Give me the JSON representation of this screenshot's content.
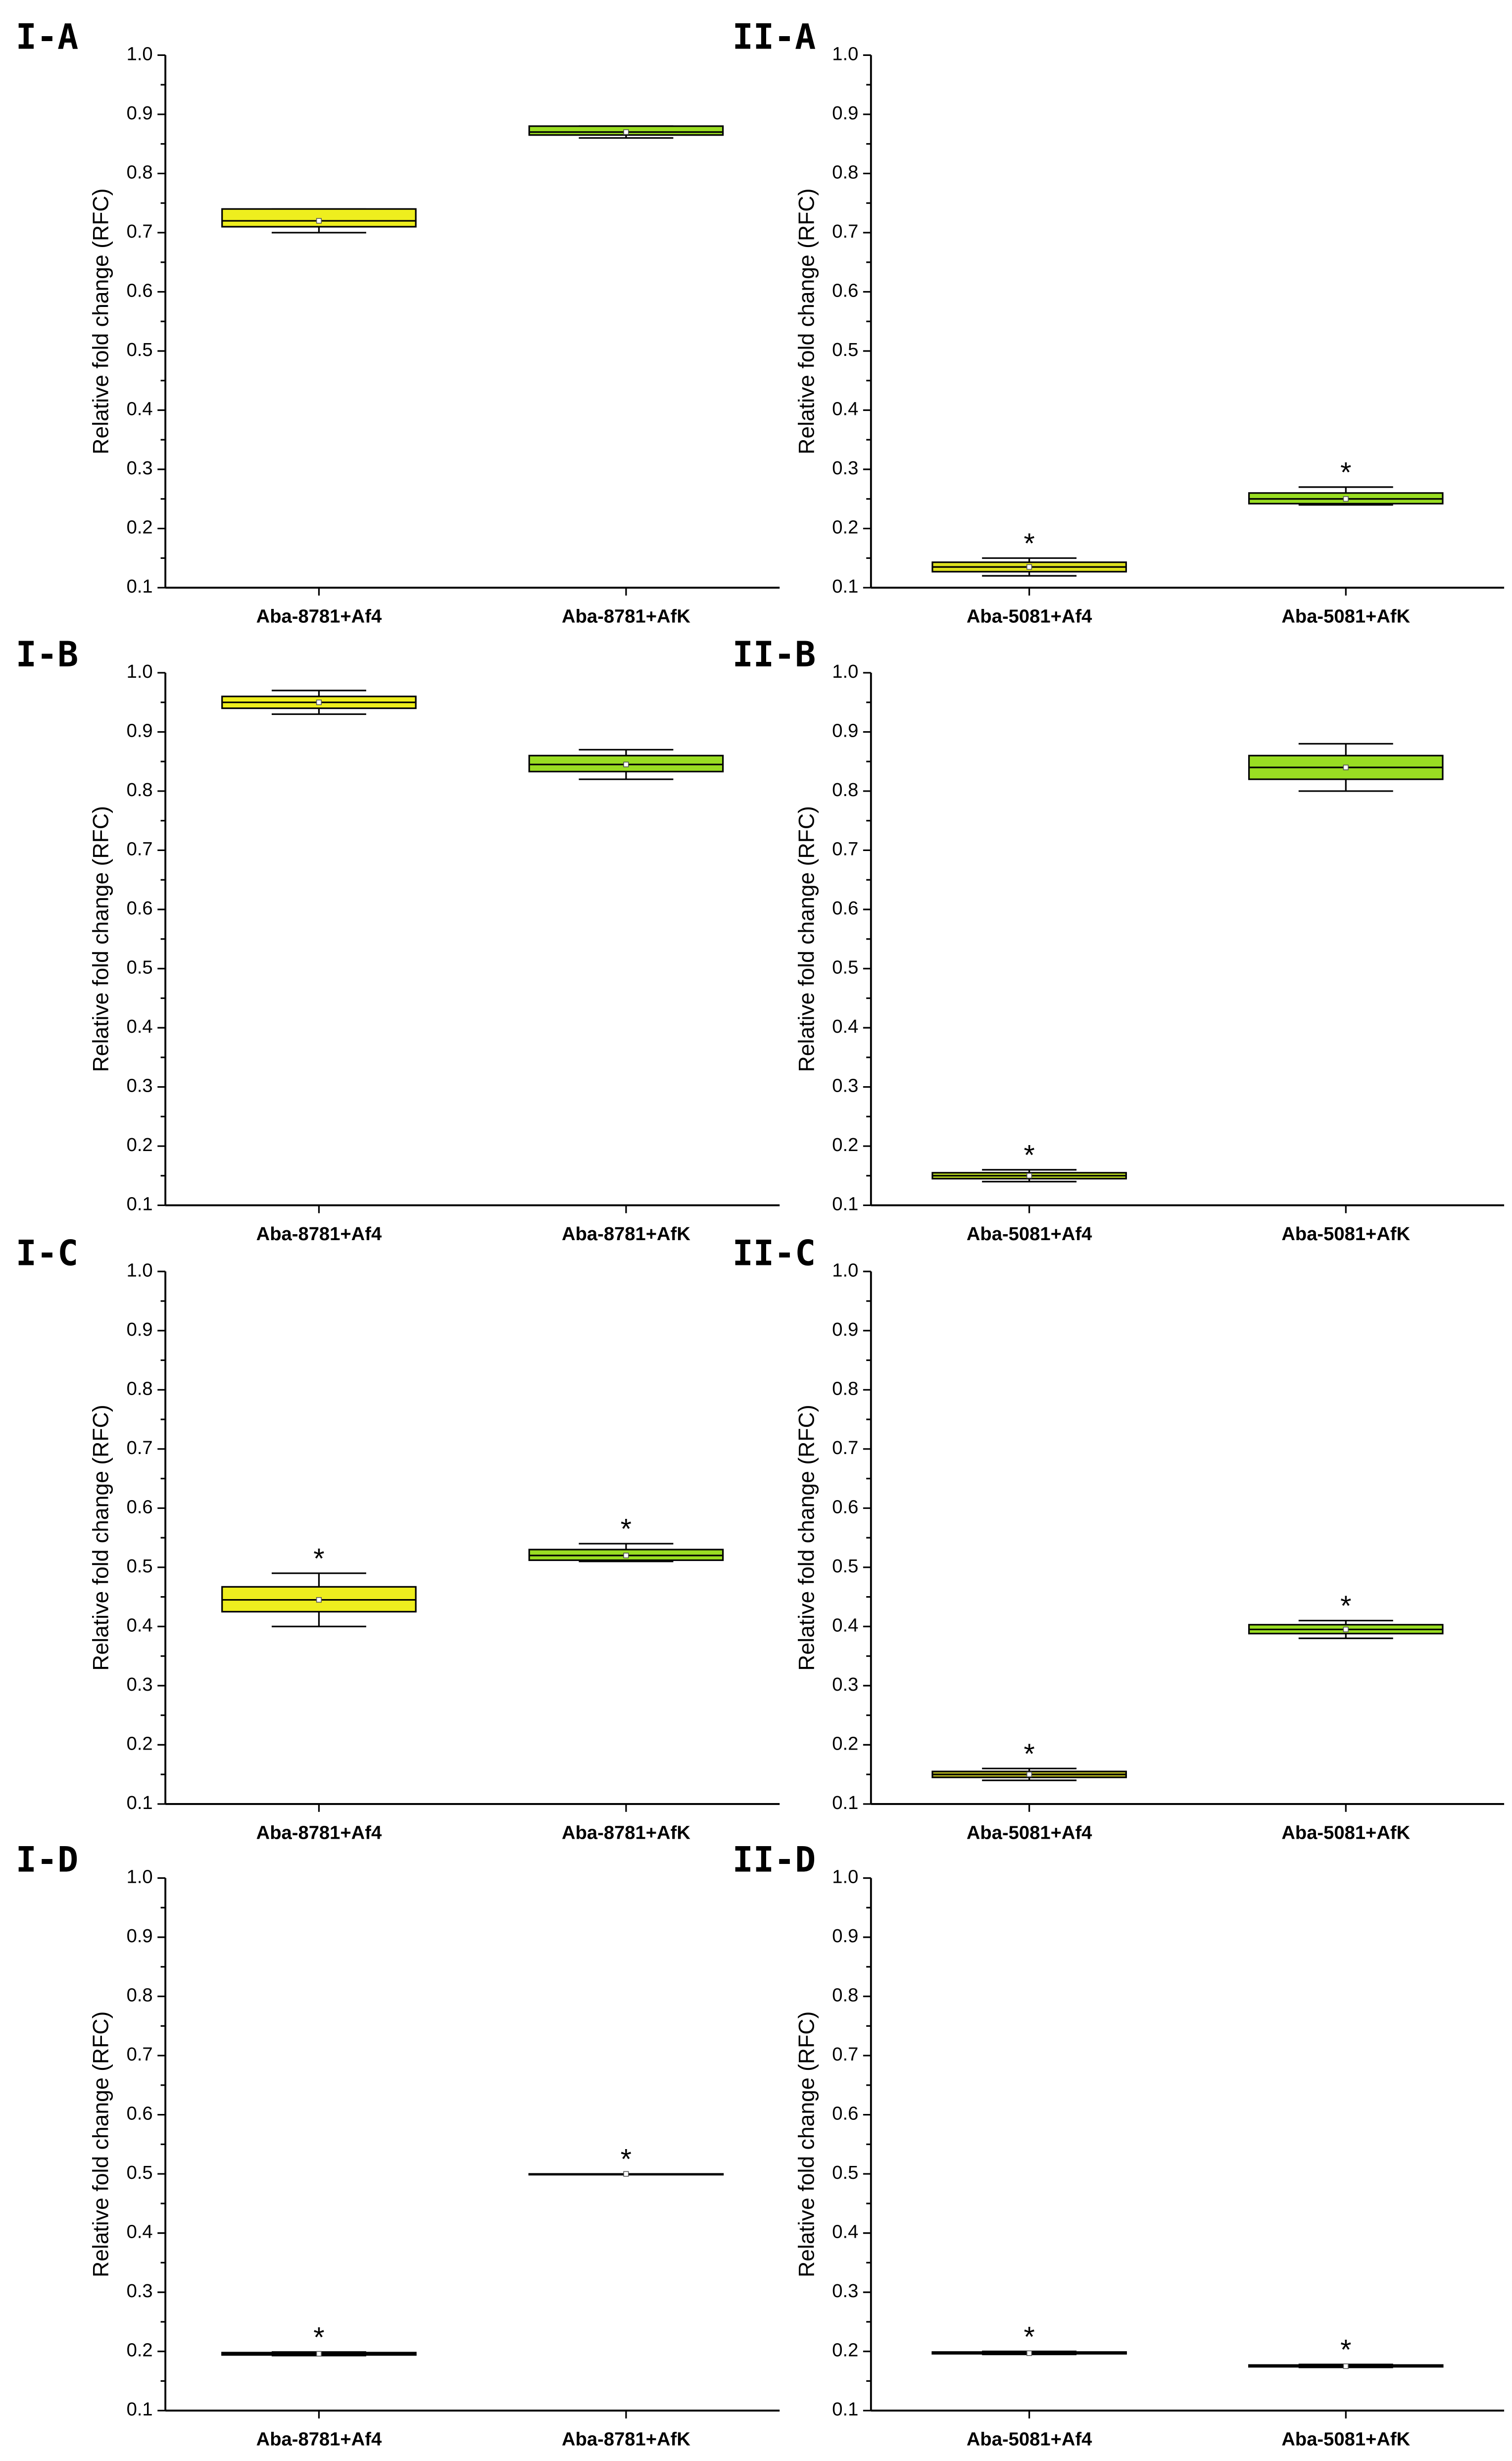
{
  "chart_data": [
    {
      "type": "box",
      "title": "I-A",
      "ylabel": "Relative fold change (RFC)",
      "categories": [
        "Aba-8781+Af4",
        "Aba-8781+AfK"
      ],
      "boxes": [
        {
          "min": 0.7,
          "q1": 0.71,
          "median": 0.72,
          "q3": 0.74,
          "max": 0.74,
          "mean": 0.72,
          "color": "#eeee1e"
        },
        {
          "min": 0.86,
          "q1": 0.865,
          "median": 0.87,
          "q3": 0.88,
          "max": 0.88,
          "mean": 0.87,
          "color": "#99dd22"
        }
      ],
      "ylim": [
        0.1,
        1.0
      ],
      "yticks": [
        0.1,
        0.2,
        0.3,
        0.4,
        0.5,
        0.6,
        0.7,
        0.8,
        0.9,
        {
          "value": 1.0,
          "label": "1.0"
        }
      ]
    },
    {
      "type": "box",
      "title": "II-A",
      "ylabel": "Relative fold change (RFC)",
      "categories": [
        "Aba-5081+Af4",
        "Aba-5081+AfK"
      ],
      "boxes": [
        {
          "min": 0.12,
          "q1": 0.127,
          "median": 0.135,
          "q3": 0.143,
          "max": 0.15,
          "mean": 0.135,
          "color": "#dde01e",
          "annotation": "*"
        },
        {
          "min": 0.24,
          "q1": 0.242,
          "median": 0.25,
          "q3": 0.26,
          "max": 0.27,
          "mean": 0.25,
          "color": "#99dd22",
          "annotation": "*"
        }
      ],
      "ylim": [
        0.1,
        1.0
      ],
      "yticks": [
        0.1,
        0.2,
        0.3,
        0.4,
        0.5,
        0.6,
        0.7,
        0.8,
        0.9,
        {
          "value": 1.0,
          "label": "1.0"
        }
      ]
    },
    {
      "type": "box",
      "title": "I-B",
      "ylabel": "Relative fold change (RFC)",
      "categories": [
        "Aba-8781+Af4",
        "Aba-8781+AfK"
      ],
      "boxes": [
        {
          "min": 0.93,
          "q1": 0.94,
          "median": 0.95,
          "q3": 0.96,
          "max": 0.97,
          "mean": 0.95,
          "color": "#eeee1e"
        },
        {
          "min": 0.82,
          "q1": 0.833,
          "median": 0.845,
          "q3": 0.86,
          "max": 0.87,
          "mean": 0.845,
          "color": "#99dd22"
        }
      ],
      "ylim": [
        0.1,
        1.0
      ],
      "yticks": [
        0.1,
        0.2,
        0.3,
        0.4,
        0.5,
        0.6,
        0.7,
        0.8,
        0.9,
        {
          "value": 1.0,
          "label": "1.0"
        }
      ]
    },
    {
      "type": "box",
      "title": "II-B",
      "ylabel": "Relative fold change (RFC)",
      "categories": [
        "Aba-5081+Af4",
        "Aba-5081+AfK"
      ],
      "boxes": [
        {
          "min": 0.14,
          "q1": 0.145,
          "median": 0.15,
          "q3": 0.155,
          "max": 0.16,
          "mean": 0.15,
          "color": "#b8d820",
          "annotation": "*"
        },
        {
          "min": 0.8,
          "q1": 0.82,
          "median": 0.84,
          "q3": 0.86,
          "max": 0.88,
          "mean": 0.84,
          "color": "#99dd22"
        }
      ],
      "ylim": [
        0.1,
        1.0
      ],
      "yticks": [
        0.1,
        0.2,
        0.3,
        0.4,
        0.5,
        0.6,
        0.7,
        0.8,
        0.9,
        {
          "value": 1.0,
          "label": "1.0"
        }
      ]
    },
    {
      "type": "box",
      "title": "I-C",
      "ylabel": "Relative fold change (RFC)",
      "categories": [
        "Aba-8781+Af4",
        "Aba-8781+AfK"
      ],
      "boxes": [
        {
          "min": 0.4,
          "q1": 0.425,
          "median": 0.445,
          "q3": 0.467,
          "max": 0.49,
          "mean": 0.445,
          "color": "#eeee1e",
          "annotation": "*"
        },
        {
          "min": 0.51,
          "q1": 0.512,
          "median": 0.52,
          "q3": 0.53,
          "max": 0.54,
          "mean": 0.52,
          "color": "#99dd22",
          "annotation": "*"
        }
      ],
      "ylim": [
        0.1,
        1.0
      ],
      "yticks": [
        0.1,
        0.2,
        0.3,
        0.4,
        0.5,
        0.6,
        0.7,
        0.8,
        0.9,
        {
          "value": 1.0,
          "label": "1.0"
        }
      ]
    },
    {
      "type": "box",
      "title": "II-C",
      "ylabel": "Relative fold change (RFC)",
      "categories": [
        "Aba-5081+Af4",
        "Aba-5081+AfK"
      ],
      "boxes": [
        {
          "min": 0.14,
          "q1": 0.145,
          "median": 0.15,
          "q3": 0.155,
          "max": 0.16,
          "mean": 0.15,
          "color": "#b8b820",
          "annotation": "*"
        },
        {
          "min": 0.38,
          "q1": 0.388,
          "median": 0.395,
          "q3": 0.403,
          "max": 0.41,
          "mean": 0.395,
          "color": "#99dd22",
          "annotation": "*"
        }
      ],
      "ylim": [
        0.1,
        1.0
      ],
      "yticks": [
        0.1,
        0.2,
        0.3,
        0.4,
        0.5,
        0.6,
        0.7,
        0.8,
        0.9,
        {
          "value": 1.0,
          "label": "1.0"
        }
      ]
    },
    {
      "type": "box",
      "title": "I-D",
      "ylabel": "Relative fold change (RFC)",
      "categories": [
        "Aba-8781+Af4",
        "Aba-8781+AfK"
      ],
      "boxes": [
        {
          "min": 0.193,
          "q1": 0.194,
          "median": 0.196,
          "q3": 0.198,
          "max": 0.199,
          "mean": 0.196,
          "color": "#000000",
          "annotation": "*"
        },
        {
          "min": 0.5,
          "q1": 0.5,
          "median": 0.5,
          "q3": 0.5,
          "max": 0.5,
          "mean": 0.5,
          "color": "#000000",
          "annotation": "*"
        }
      ],
      "ylim": [
        0.1,
        1.0
      ],
      "yticks": [
        0.1,
        0.2,
        0.3,
        0.4,
        0.5,
        0.6,
        0.7,
        0.8,
        0.9,
        {
          "value": 1.0,
          "label": "1.0"
        }
      ]
    },
    {
      "type": "box",
      "title": "II-D",
      "ylabel": "Relative fold change (RFC)",
      "categories": [
        "Aba-5081+Af4",
        "Aba-5081+AfK"
      ],
      "boxes": [
        {
          "min": 0.195,
          "q1": 0.196,
          "median": 0.197,
          "q3": 0.199,
          "max": 0.2,
          "mean": 0.197,
          "color": "#000000",
          "annotation": "*"
        },
        {
          "min": 0.173,
          "q1": 0.174,
          "median": 0.175,
          "q3": 0.177,
          "max": 0.178,
          "mean": 0.175,
          "color": "#000000",
          "annotation": "*"
        }
      ],
      "ylim": [
        0.1,
        1.0
      ],
      "yticks": [
        0.1,
        0.2,
        0.3,
        0.4,
        0.5,
        0.6,
        0.7,
        0.8,
        0.9,
        {
          "value": 1.0,
          "label": "1.0"
        }
      ]
    }
  ]
}
